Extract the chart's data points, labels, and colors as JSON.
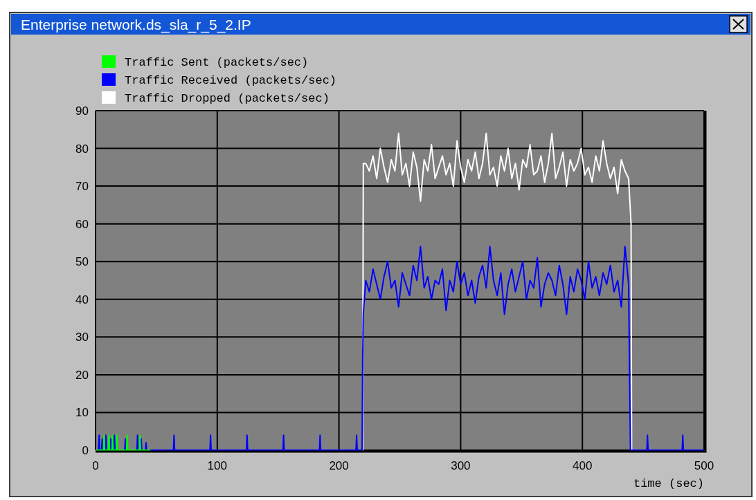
{
  "chart_data": {
    "type": "line",
    "title": "Enterprise network.ds_sla_r_5_2.IP",
    "xlabel": "time (sec)",
    "xlim": [
      0,
      500
    ],
    "xticks": [
      0,
      100,
      200,
      300,
      400,
      500
    ],
    "ylim": [
      0,
      90
    ],
    "yticks": [
      0,
      10,
      20,
      30,
      40,
      50,
      60,
      70,
      80,
      90
    ],
    "grid": true,
    "legend": "top left",
    "series": [
      {
        "name": "Traffic Sent (packets/sec)",
        "color": "#00ff00",
        "x": [
          0,
          6.5,
          7,
          7.5,
          10.5,
          11,
          11.5,
          13.5,
          14,
          14.5,
          17,
          17.5,
          18,
          25.5,
          26,
          26.5,
          36,
          36.5,
          37,
          45
        ],
        "values": [
          0,
          0,
          4,
          0,
          0,
          4,
          0,
          0,
          4,
          0,
          0,
          4,
          0,
          0,
          4,
          0,
          0,
          4,
          0,
          0
        ]
      },
      {
        "name": "Traffic Received (packets/sec)",
        "color": "#0000ff",
        "x": [
          0,
          2.5,
          3,
          3.5,
          5,
          5.5,
          6,
          8,
          8.5,
          9,
          12,
          12.5,
          13,
          15,
          15.5,
          16,
          24,
          24.5,
          25,
          34,
          34.5,
          35,
          37,
          37.5,
          38,
          41,
          41.5,
          42,
          64,
          64.5,
          65,
          94,
          94.5,
          95,
          124,
          124.5,
          125,
          154,
          154.5,
          155,
          184,
          184.5,
          185,
          214,
          214.5,
          215,
          219,
          219.5,
          220,
          222,
          225,
          228,
          231,
          234,
          237,
          240,
          243,
          246,
          249,
          252,
          255,
          258,
          261,
          264,
          267,
          270,
          273,
          276,
          279,
          282,
          285,
          288,
          291,
          294,
          297,
          300,
          303,
          306,
          309,
          312,
          315,
          318,
          321,
          324,
          327,
          330,
          333,
          336,
          339,
          342,
          345,
          348,
          351,
          354,
          357,
          360,
          363,
          366,
          369,
          372,
          375,
          378,
          381,
          384,
          387,
          390,
          393,
          396,
          399,
          402,
          405,
          408,
          411,
          414,
          417,
          420,
          423,
          426,
          429,
          432,
          435,
          438,
          439.5,
          453,
          453.5,
          454,
          482,
          482.5,
          483,
          500
        ],
        "values": [
          0,
          0,
          4,
          0,
          0,
          3,
          0,
          0,
          4,
          0,
          0,
          3,
          0,
          0,
          4,
          0,
          0,
          3,
          0,
          0,
          4,
          0,
          0,
          3,
          0,
          0,
          2,
          0,
          0,
          4,
          0,
          0,
          4,
          0,
          0,
          4,
          0,
          0,
          4,
          0,
          0,
          4,
          0,
          0,
          4,
          0,
          0,
          24,
          36,
          45,
          42,
          48,
          44,
          40,
          46,
          50,
          43,
          45,
          38,
          47,
          44,
          41,
          49,
          45,
          54,
          43,
          46,
          40,
          45,
          44,
          48,
          37,
          45,
          42,
          50,
          44,
          47,
          41,
          45,
          39,
          46,
          49,
          43,
          54,
          45,
          41,
          47,
          36,
          44,
          48,
          42,
          46,
          50,
          40,
          45,
          43,
          51,
          38,
          44,
          47,
          45,
          41,
          49,
          44,
          36,
          46,
          42,
          48,
          45,
          40,
          50,
          43,
          46,
          41,
          47,
          44,
          49,
          42,
          45,
          38,
          54,
          44,
          0,
          0,
          4,
          0,
          0,
          4,
          0,
          0
        ]
      },
      {
        "name": "Traffic Dropped (packets/sec)",
        "color": "#ffffff",
        "x": [
          0,
          219.5,
          220,
          222,
          225,
          228,
          231,
          234,
          237,
          240,
          243,
          246,
          249,
          252,
          255,
          258,
          261,
          264,
          267,
          270,
          273,
          276,
          279,
          282,
          285,
          288,
          291,
          294,
          297,
          300,
          303,
          306,
          309,
          312,
          315,
          318,
          321,
          324,
          327,
          330,
          333,
          336,
          339,
          342,
          345,
          348,
          351,
          354,
          357,
          360,
          363,
          366,
          369,
          372,
          375,
          378,
          381,
          384,
          387,
          390,
          393,
          396,
          399,
          402,
          405,
          408,
          411,
          414,
          417,
          420,
          423,
          426,
          429,
          432,
          435,
          438,
          440,
          440.5,
          500
        ],
        "values": [
          0,
          0,
          76,
          76,
          74,
          78,
          72,
          80,
          75,
          71,
          77,
          74,
          84,
          73,
          76,
          70,
          79,
          75,
          66,
          77,
          74,
          81,
          72,
          75,
          78,
          73,
          76,
          70,
          82,
          75,
          71,
          77,
          74,
          79,
          72,
          76,
          84,
          73,
          75,
          70,
          78,
          74,
          80,
          72,
          76,
          69,
          77,
          75,
          81,
          73,
          74,
          78,
          71,
          76,
          84,
          72,
          75,
          79,
          70,
          77,
          74,
          76,
          80,
          73,
          75,
          71,
          78,
          74,
          82,
          76,
          72,
          75,
          68,
          77,
          74,
          72,
          60,
          0,
          0
        ]
      }
    ]
  }
}
